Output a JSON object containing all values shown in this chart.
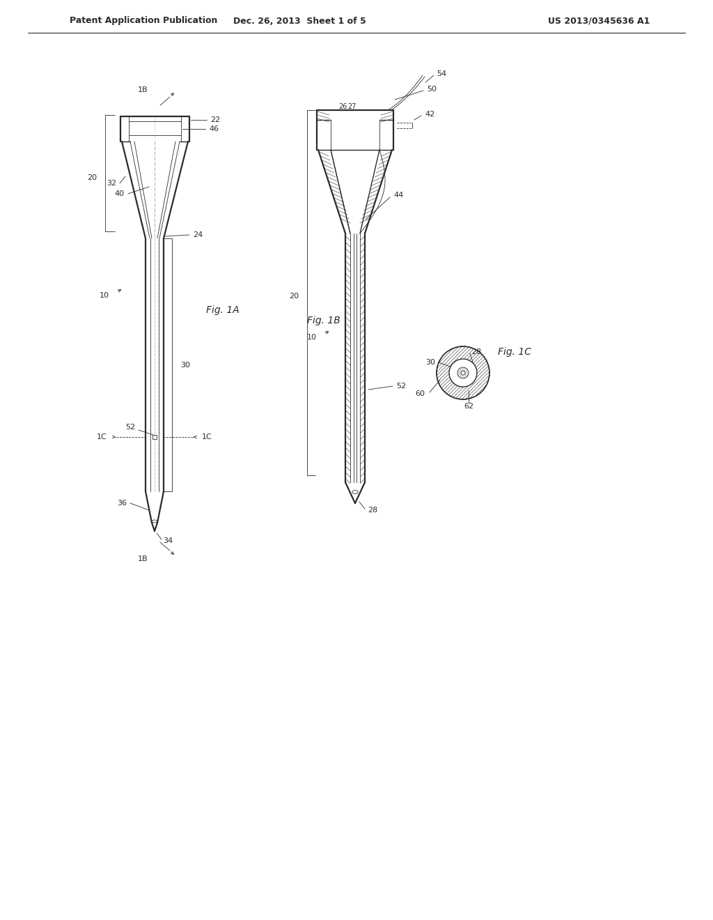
{
  "bg_color": "#ffffff",
  "line_color": "#2a2a2a",
  "hatch_color": "#555555",
  "header_left": "Patent Application Publication",
  "header_mid": "Dec. 26, 2013  Sheet 1 of 5",
  "header_right": "US 2013/0345636 A1",
  "fig1a_label": "Fig. 1A",
  "fig1b_label": "Fig. 1B",
  "fig1c_label": "Fig. 1C"
}
